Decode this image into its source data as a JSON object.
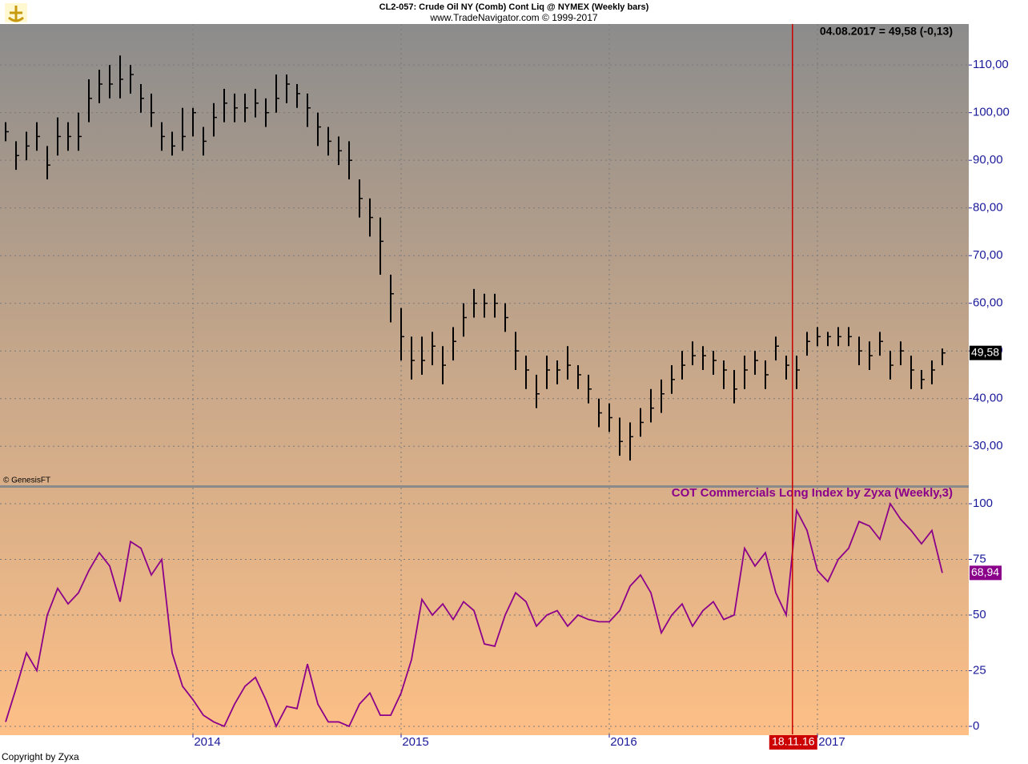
{
  "chart_data": [
    {
      "type": "ohlc",
      "title": "CL2-057:  Crude Oil NY (Comb) Cont Liq @ NYMEX  (Weekly bars)",
      "subtitle": "www.TradeNavigator.com © 1999-2017",
      "info": "04.08.2017 = 49,58 (-0,13)",
      "source": "© GenesisFT",
      "last_label": "49,58",
      "color": "#000000",
      "grid": true,
      "xlim": [
        2013.073,
        2017.727
      ],
      "xticks": [
        2014,
        2015,
        2016,
        2017
      ],
      "ylim": [
        21.8,
        118.6
      ],
      "yticks": [
        {
          "value": 30,
          "label": "30,00"
        },
        {
          "value": 40,
          "label": "40,00"
        },
        {
          "value": 50,
          "label": "50,00"
        },
        {
          "value": 60,
          "label": "60,00"
        },
        {
          "value": 70,
          "label": "70,00"
        },
        {
          "value": 80,
          "label": "80,00"
        },
        {
          "value": 90,
          "label": "90,00"
        },
        {
          "value": 100,
          "label": "100,00"
        },
        {
          "value": 110,
          "label": "110,00"
        }
      ],
      "x": [
        2013.1,
        2013.15,
        2013.2,
        2013.25,
        2013.3,
        2013.35,
        2013.4,
        2013.45,
        2013.5,
        2013.55,
        2013.6,
        2013.65,
        2013.7,
        2013.75,
        2013.8,
        2013.85,
        2013.9,
        2013.95,
        2014,
        2014.05,
        2014.1,
        2014.15,
        2014.2,
        2014.25,
        2014.3,
        2014.35,
        2014.4,
        2014.45,
        2014.5,
        2014.55,
        2014.6,
        2014.65,
        2014.7,
        2014.75,
        2014.8,
        2014.85,
        2014.9,
        2014.95,
        2015,
        2015.05,
        2015.1,
        2015.15,
        2015.2,
        2015.25,
        2015.3,
        2015.35,
        2015.4,
        2015.45,
        2015.5,
        2015.55,
        2015.6,
        2015.65,
        2015.7,
        2015.75,
        2015.8,
        2015.85,
        2015.9,
        2015.95,
        2016,
        2016.05,
        2016.1,
        2016.15,
        2016.2,
        2016.25,
        2016.3,
        2016.35,
        2016.4,
        2016.45,
        2016.5,
        2016.55,
        2016.6,
        2016.65,
        2016.7,
        2016.75,
        2016.8,
        2016.85,
        2016.9,
        2016.95,
        2017,
        2017.05,
        2017.1,
        2017.15,
        2017.2,
        2017.25,
        2017.3,
        2017.35,
        2017.4,
        2017.45,
        2017.5,
        2017.55,
        2017.6
      ],
      "high": [
        98,
        94,
        96,
        98,
        93,
        99,
        98,
        100,
        107,
        109,
        110,
        112,
        110,
        106,
        104,
        98,
        96,
        101,
        101,
        97,
        102,
        105,
        104,
        104,
        105,
        103,
        108,
        108,
        106,
        104,
        100,
        97,
        95,
        94,
        86,
        82,
        78,
        66,
        59,
        53,
        53,
        54,
        51,
        55,
        60,
        63,
        62,
        62,
        60,
        54,
        49,
        45,
        49,
        48,
        51,
        47,
        45,
        40,
        39,
        36,
        35,
        38,
        42,
        44,
        47,
        50,
        52,
        51,
        50,
        48,
        46,
        49,
        50,
        48,
        53,
        49,
        49,
        54,
        55,
        54,
        55,
        55,
        53,
        52,
        54,
        50,
        52,
        49,
        46,
        48,
        50.5
      ],
      "low": [
        94,
        88,
        90,
        92,
        86,
        91,
        92,
        92,
        98,
        102,
        103,
        103,
        104,
        100,
        97,
        92,
        91,
        92,
        95,
        91,
        95,
        98,
        98,
        98,
        99,
        97,
        100,
        102,
        101,
        97,
        93,
        91,
        89,
        86,
        78,
        74,
        66,
        56,
        48,
        44,
        45,
        47,
        43,
        48,
        53,
        57,
        57,
        57,
        54,
        46,
        42,
        38,
        42,
        43,
        44,
        42,
        39,
        34,
        33,
        28,
        27,
        32,
        35,
        37,
        41,
        44,
        47,
        46,
        45,
        42,
        39,
        42,
        45,
        42,
        48,
        44,
        42,
        49,
        51,
        51,
        51,
        51,
        47,
        46,
        49,
        44,
        47,
        42,
        42,
        43,
        47
      ],
      "close": [
        96,
        91,
        93,
        95,
        89,
        95,
        95,
        95,
        103,
        106,
        106,
        107,
        108,
        103,
        100,
        95,
        93,
        95,
        100,
        94,
        99,
        102,
        101,
        101,
        102,
        100,
        103,
        106,
        104,
        101,
        97,
        94,
        92,
        90,
        82,
        78,
        73,
        62,
        53,
        48,
        48,
        51,
        47,
        52,
        57,
        60,
        60,
        60,
        57,
        50,
        46,
        41,
        46,
        46,
        47,
        45,
        42,
        37,
        36,
        31,
        32,
        35,
        38,
        41,
        44,
        47,
        49,
        49,
        48,
        46,
        42,
        46,
        48,
        45,
        51,
        47,
        46,
        52,
        53,
        53,
        53,
        53,
        50,
        49,
        52,
        47,
        50,
        46,
        44,
        46,
        49.58
      ]
    },
    {
      "type": "line",
      "title": "COT Commercials Long Index by Zyxa (Weekly,3)",
      "last_label": "68,94",
      "color": "#8b008b",
      "grid": true,
      "xlim": [
        2013.073,
        2017.727
      ],
      "xticks": [
        2014,
        2015,
        2016,
        2017
      ],
      "ylim": [
        -3.6,
        107.2
      ],
      "yticks": [
        0,
        25,
        50,
        75,
        100
      ],
      "marker": {
        "x": 2016.88,
        "label": "18.11.16"
      },
      "x": [
        2013.1,
        2013.15,
        2013.2,
        2013.25,
        2013.3,
        2013.35,
        2013.4,
        2013.45,
        2013.5,
        2013.55,
        2013.6,
        2013.65,
        2013.7,
        2013.75,
        2013.8,
        2013.85,
        2013.9,
        2013.95,
        2014,
        2014.05,
        2014.1,
        2014.15,
        2014.2,
        2014.25,
        2014.3,
        2014.35,
        2014.4,
        2014.45,
        2014.5,
        2014.55,
        2014.6,
        2014.65,
        2014.7,
        2014.75,
        2014.8,
        2014.85,
        2014.9,
        2014.95,
        2015,
        2015.05,
        2015.1,
        2015.15,
        2015.2,
        2015.25,
        2015.3,
        2015.35,
        2015.4,
        2015.45,
        2015.5,
        2015.55,
        2015.6,
        2015.65,
        2015.7,
        2015.75,
        2015.8,
        2015.85,
        2015.9,
        2015.95,
        2016,
        2016.05,
        2016.1,
        2016.15,
        2016.2,
        2016.25,
        2016.3,
        2016.35,
        2016.4,
        2016.45,
        2016.5,
        2016.55,
        2016.6,
        2016.65,
        2016.7,
        2016.75,
        2016.8,
        2016.85,
        2016.9,
        2016.95,
        2017,
        2017.05,
        2017.1,
        2017.15,
        2017.2,
        2017.25,
        2017.3,
        2017.35,
        2017.4,
        2017.45,
        2017.5,
        2017.55,
        2017.6
      ],
      "values": [
        2,
        17,
        33,
        25,
        50,
        62,
        55,
        60,
        70,
        78,
        72,
        56,
        83,
        80,
        68,
        75,
        33,
        18,
        12,
        5,
        2,
        0,
        10,
        18,
        22,
        12,
        0,
        9,
        8,
        28,
        10,
        2,
        2,
        0,
        10,
        15,
        5,
        5,
        15,
        30,
        57,
        50,
        55,
        48,
        56,
        52,
        37,
        36,
        50,
        60,
        56,
        45,
        50,
        52,
        45,
        50,
        48,
        47,
        47,
        52,
        63,
        68,
        60,
        42,
        50,
        55,
        45,
        52,
        56,
        48,
        50,
        80,
        72,
        78,
        60,
        50,
        97,
        88,
        70,
        65,
        75,
        80,
        92,
        90,
        84,
        100,
        93,
        88,
        82,
        88,
        68.94
      ]
    }
  ],
  "footer": "Copyright by Zyxa"
}
